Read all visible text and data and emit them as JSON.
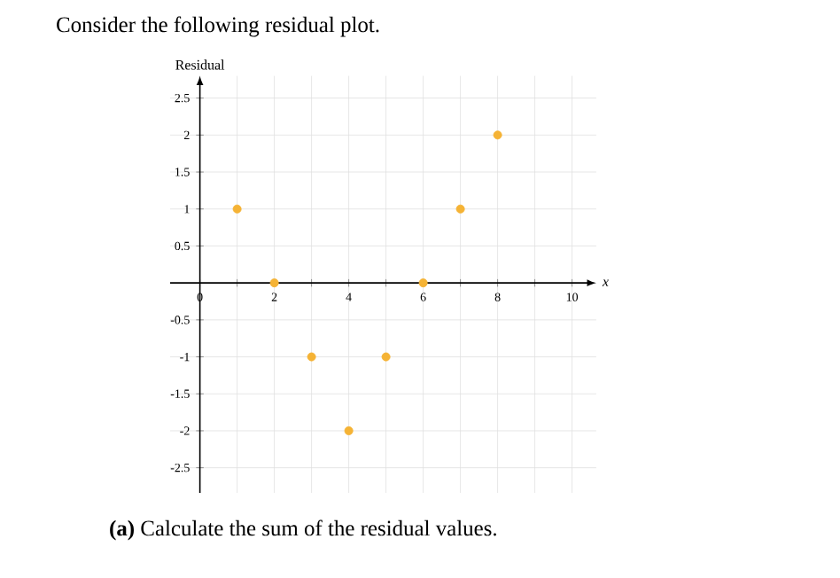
{
  "chart_data": {
    "type": "scatter",
    "title": "Consider the following residual plot.",
    "ylabel": "Residual",
    "xlabel": "x",
    "annotations": [
      "**(a)** Calculate the sum of the residual values."
    ],
    "x": [
      1,
      2,
      3,
      4,
      5,
      6,
      7,
      8
    ],
    "values": [
      1,
      0,
      -1,
      -2,
      -1,
      0,
      1,
      2
    ],
    "color": "#f5b335",
    "grid": true,
    "xlim": [
      -0.8,
      10.65
    ],
    "ylim": [
      -2.84,
      2.8
    ],
    "xticks": [
      0,
      {
        "value": 1,
        "label": null
      },
      2,
      {
        "value": 3,
        "label": null
      },
      4,
      {
        "value": 5,
        "label": null
      },
      6,
      {
        "value": 7,
        "label": null
      },
      8,
      {
        "value": 9,
        "label": null
      },
      10
    ],
    "yticks": [
      -2.5,
      -2,
      -1.5,
      -1,
      -0.5,
      0.5,
      1,
      1.5,
      2,
      2.5
    ]
  }
}
